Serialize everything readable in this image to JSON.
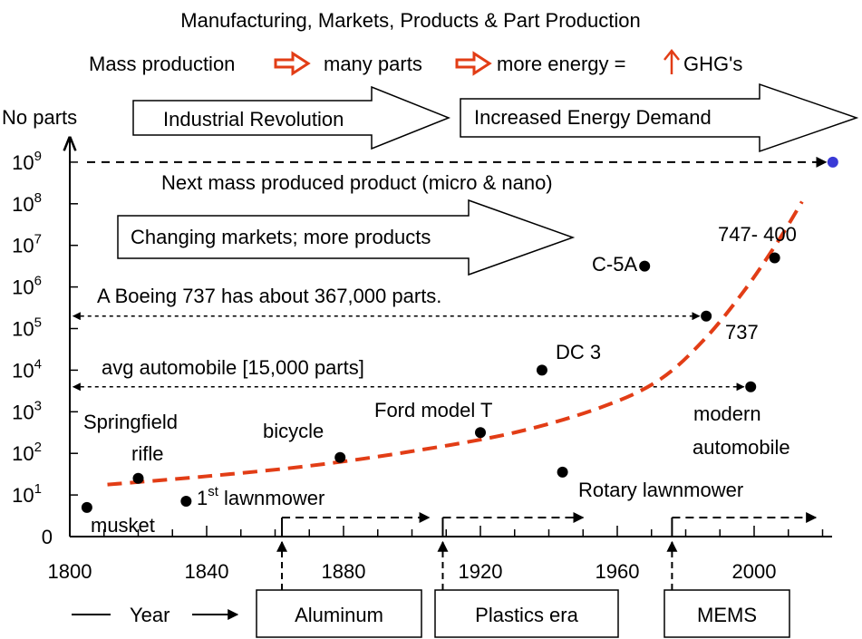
{
  "header": {
    "title": "Manufacturing, Markets, Products & Part Production",
    "subtitle_parts": [
      "Mass production",
      "many parts",
      "more energy =",
      "GHG's"
    ],
    "arrow_color": "#e23d16"
  },
  "banners": {
    "industrial": "Industrial Revolution",
    "energy": "Increased Energy Demand",
    "markets": "Changing markets; more products"
  },
  "eras": [
    "Aluminum",
    "Plastics era",
    "MEMS"
  ],
  "footer": {
    "year_label": "Year"
  },
  "chart_data": {
    "type": "scatter",
    "ylabel": "No parts",
    "xlabel": "Year",
    "xlim": [
      1800,
      2025
    ],
    "ylim_log10": [
      0,
      9.5
    ],
    "x_ticks": [
      1800,
      1840,
      1880,
      1920,
      1960,
      2000
    ],
    "y_ticks": [
      {
        "exp": 0,
        "base": "0",
        "sup": ""
      },
      {
        "exp": 1,
        "base": "10",
        "sup": "1"
      },
      {
        "exp": 2,
        "base": "10",
        "sup": "2"
      },
      {
        "exp": 3,
        "base": "10",
        "sup": "3"
      },
      {
        "exp": 4,
        "base": "10",
        "sup": "4"
      },
      {
        "exp": 5,
        "base": "10",
        "sup": "5"
      },
      {
        "exp": 6,
        "base": "10",
        "sup": "6"
      },
      {
        "exp": 7,
        "base": "10",
        "sup": "7"
      },
      {
        "exp": 8,
        "base": "10",
        "sup": "8"
      },
      {
        "exp": 9,
        "base": "10",
        "sup": "9"
      }
    ],
    "points": [
      {
        "name": "musket",
        "label": "musket",
        "year": 1805,
        "log10_parts": 0.7
      },
      {
        "name": "springfield-rifle",
        "label": "Springfield rifle",
        "lines": [
          "Springfield",
          "rifle"
        ],
        "year": 1820,
        "log10_parts": 1.4
      },
      {
        "name": "lawnmower",
        "label": "1st lawnmower",
        "base": "1",
        "sup": "st",
        "rest": " lawnmower",
        "year": 1834,
        "log10_parts": 0.85
      },
      {
        "name": "bicycle",
        "label": "bicycle",
        "year": 1879,
        "log10_parts": 1.9
      },
      {
        "name": "ford-model-t",
        "label": "Ford model T",
        "year": 1920,
        "log10_parts": 2.5
      },
      {
        "name": "dc3",
        "label": "DC 3",
        "year": 1938,
        "log10_parts": 4.0
      },
      {
        "name": "rotary-lawnmower",
        "label": "Rotary lawnmower",
        "year": 1944,
        "log10_parts": 1.55
      },
      {
        "name": "c5a",
        "label": "C-5A",
        "year": 1968,
        "log10_parts": 6.5
      },
      {
        "name": "boeing-737",
        "label": "737",
        "year": 1986,
        "log10_parts": 5.3
      },
      {
        "name": "modern-automobile",
        "label": "modern automobile",
        "lines": [
          "modern",
          "automobile"
        ],
        "year": 1999,
        "log10_parts": 3.6
      },
      {
        "name": "boeing-747-400",
        "label": "747- 400",
        "year": 2006,
        "log10_parts": 6.7
      }
    ],
    "future_point": {
      "year": 2023,
      "log10_parts": 9.0,
      "color": "#3a3ad6"
    },
    "reference_lines": [
      {
        "name": "next-mass-produced",
        "label": "Next mass produced product (micro & nano)",
        "log10": 9.0,
        "x_from": 1806,
        "x_to": 2021
      },
      {
        "name": "boeing-737-parts",
        "label": "A Boeing 737 has about 367,000 parts.",
        "log10": 5.3,
        "x_from": 1801,
        "x_to": 1984
      },
      {
        "name": "avg-automobile",
        "label": "avg automobile [15,000 parts]",
        "log10": 3.6,
        "x_from": 1801,
        "x_to": 1997
      }
    ],
    "trend": {
      "color": "#e23d16",
      "points": [
        [
          1811,
          1.25
        ],
        [
          1840,
          1.45
        ],
        [
          1870,
          1.7
        ],
        [
          1900,
          2.05
        ],
        [
          1930,
          2.5
        ],
        [
          1955,
          3.1
        ],
        [
          1972,
          3.75
        ],
        [
          1985,
          4.7
        ],
        [
          1997,
          5.9
        ],
        [
          2007,
          7.1
        ],
        [
          2014,
          8.05
        ]
      ]
    },
    "era_arrows": [
      {
        "name": "aluminum",
        "start": 1862,
        "end": 1905
      },
      {
        "name": "plastics",
        "start": 1909,
        "end": 1950
      },
      {
        "name": "mems",
        "start": 1976,
        "end": 2018
      }
    ]
  }
}
